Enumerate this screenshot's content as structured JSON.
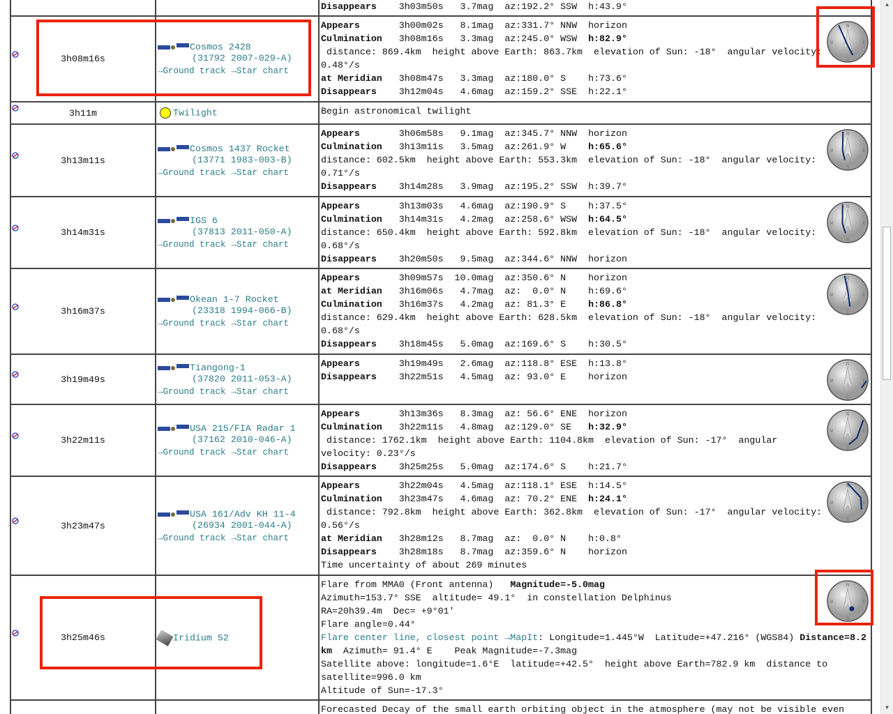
{
  "colors": {
    "link": "#2b7d8a",
    "highlight": "#e8240c",
    "twilight_sun": "#ffff00"
  },
  "links": {
    "ground_track": "→Ground track",
    "star_chart": "→Star chart"
  },
  "rows": [
    {
      "time": "",
      "name": "",
      "designation": "",
      "lines": [
        {
          "type": "event",
          "label": "Disappears",
          "time": "3h03m50s",
          "mag": "3.7mag",
          "az": "az:192.2°",
          "dir": "SSW",
          "h": "h:43.9°"
        }
      ]
    },
    {
      "time": "3h08m16s",
      "name": "Cosmos 2428",
      "designation": "(31792 2007-029-A)",
      "compass": true,
      "lines": [
        {
          "type": "event",
          "label": "Appears",
          "time": "3h00m02s",
          "mag": "8.1mag",
          "az": "az:331.7°",
          "dir": "NNW",
          "h": "horizon"
        },
        {
          "type": "event",
          "label": "Culmination",
          "time": "3h08m16s",
          "mag": "3.3mag",
          "az": "az:245.0°",
          "dir": "WSW",
          "h": "h:82.9°",
          "hbold": true
        },
        {
          "type": "text",
          "text": " distance: 869.4km  height above Earth: 863.7km  elevation of Sun: -18°  angular velocity: 0.48°/s"
        },
        {
          "type": "event",
          "label": "at Meridian",
          "time": "3h08m47s",
          "mag": "3.3mag",
          "az": "az:180.0°",
          "dir": "S",
          "h": "h:73.6°"
        },
        {
          "type": "event",
          "label": "Disappears",
          "time": "3h12m04s",
          "mag": "4.6mag",
          "az": "az:159.2°",
          "dir": "SSE",
          "h": "h:22.1°"
        }
      ]
    },
    {
      "time": "3h11m",
      "name": "Twilight",
      "twilight": true,
      "lines": [
        {
          "type": "text",
          "text": "Begin astronomical twilight"
        }
      ]
    },
    {
      "time": "3h13m11s",
      "name": "Cosmos 1437 Rocket",
      "designation": "(13771 1983-003-B)",
      "compass": true,
      "lines": [
        {
          "type": "event",
          "label": "Appears",
          "time": "3h06m58s",
          "mag": "9.1mag",
          "az": "az:345.7°",
          "dir": "NNW",
          "h": "horizon"
        },
        {
          "type": "event",
          "label": "Culmination",
          "time": "3h13m11s",
          "mag": "3.5mag",
          "az": "az:261.9°",
          "dir": "W",
          "h": "h:65.6°",
          "hbold": true
        },
        {
          "type": "text",
          "text": "distance: 602.5km  height above Earth: 553.3km  elevation of Sun: -18°  angular velocity: 0.71°/s"
        },
        {
          "type": "event",
          "label": "Disappears",
          "time": "3h14m28s",
          "mag": "3.9mag",
          "az": "az:195.2°",
          "dir": "SSW",
          "h": "h:39.7°"
        }
      ]
    },
    {
      "time": "3h14m31s",
      "name": "IGS 6",
      "designation": "(37813 2011-050-A)",
      "compass": true,
      "lines": [
        {
          "type": "event",
          "label": "Appears",
          "time": "3h13m03s",
          "mag": "4.6mag",
          "az": "az:190.9°",
          "dir": "S",
          "h": "h:37.5°"
        },
        {
          "type": "event",
          "label": "Culmination",
          "time": "3h14m31s",
          "mag": "4.2mag",
          "az": "az:258.6°",
          "dir": "WSW",
          "h": "h:64.5°",
          "hbold": true
        },
        {
          "type": "text",
          "text": "distance: 650.4km  height above Earth: 592.8km  elevation of Sun: -18°  angular velocity: 0.68°/s"
        },
        {
          "type": "event",
          "label": "Disappears",
          "time": "3h20m50s",
          "mag": "9.5mag",
          "az": "az:344.6°",
          "dir": "NNW",
          "h": "horizon"
        }
      ]
    },
    {
      "time": "3h16m37s",
      "name": "Okean 1-7 Rocket",
      "designation": "(23318 1994-066-B)",
      "compass": true,
      "lines": [
        {
          "type": "event",
          "label": "Appears",
          "time": "3h09m57s",
          "mag": "10.0mag",
          "az": "az:350.6°",
          "dir": "N",
          "h": "horizon"
        },
        {
          "type": "event",
          "label": "at Meridian",
          "time": "3h16m06s",
          "mag": "4.7mag",
          "az": "az:  0.0°",
          "dir": "N",
          "h": "h:69.6°"
        },
        {
          "type": "event",
          "label": "Culmination",
          "time": "3h16m37s",
          "mag": "4.2mag",
          "az": "az: 81.3°",
          "dir": "E",
          "h": "h:86.8°",
          "hbold": true
        },
        {
          "type": "text",
          "text": "distance: 629.4km  height above Earth: 628.5km  elevation of Sun: -18°  angular velocity: 0.68°/s"
        },
        {
          "type": "event",
          "label": "Disappears",
          "time": "3h18m45s",
          "mag": "5.0mag",
          "az": "az:169.6°",
          "dir": "S",
          "h": "h:30.5°"
        }
      ]
    },
    {
      "time": "3h19m49s",
      "name": "Tiangong-1",
      "designation": "(37820 2011-053-A)",
      "compass": true,
      "lines": [
        {
          "type": "event",
          "label": "Appears",
          "time": "3h19m49s",
          "mag": "2.6mag",
          "az": "az:118.8°",
          "dir": "ESE",
          "h": "h:13.8°"
        },
        {
          "type": "event",
          "label": "Disappears",
          "time": "3h22m51s",
          "mag": "4.5mag",
          "az": "az: 93.0°",
          "dir": "E",
          "h": "horizon"
        }
      ]
    },
    {
      "time": "3h22m11s",
      "name": "USA 215/FIA Radar 1",
      "designation": "(37162 2010-046-A)",
      "compass": true,
      "lines": [
        {
          "type": "event",
          "label": "Appears",
          "time": "3h13m36s",
          "mag": "8.3mag",
          "az": "az: 56.6°",
          "dir": "ENE",
          "h": "horizon"
        },
        {
          "type": "event",
          "label": "Culmination",
          "time": "3h22m11s",
          "mag": "4.8mag",
          "az": "az:129.0°",
          "dir": "SE",
          "h": "h:32.9°",
          "hbold": true
        },
        {
          "type": "text",
          "text": " distance: 1762.1km  height above Earth: 1104.8km  elevation of Sun: -17°  angular velocity: 0.23°/s"
        },
        {
          "type": "event",
          "label": "Disappears",
          "time": "3h25m25s",
          "mag": "5.0mag",
          "az": "az:174.6°",
          "dir": "S",
          "h": "h:21.7°"
        }
      ]
    },
    {
      "time": "3h23m47s",
      "name": "USA 161/Adv KH 11-4",
      "designation": "(26934 2001-044-A)",
      "compass": true,
      "lines": [
        {
          "type": "event",
          "label": "Appears",
          "time": "3h22m04s",
          "mag": "4.5mag",
          "az": "az:118.1°",
          "dir": "ESE",
          "h": "h:14.5°"
        },
        {
          "type": "event",
          "label": "Culmination",
          "time": "3h23m47s",
          "mag": "4.6mag",
          "az": "az: 70.2°",
          "dir": "ENE",
          "h": "h:24.1°",
          "hbold": true
        },
        {
          "type": "text",
          "text": " distance: 792.8km  height above Earth: 362.8km  elevation of Sun: -17°  angular velocity: 0.56°/s"
        },
        {
          "type": "event",
          "label": "at Meridian",
          "time": "3h28m12s",
          "mag": "8.7mag",
          "az": "az:  0.0°",
          "dir": "N",
          "h": "h:0.8°"
        },
        {
          "type": "event",
          "label": "Disappears",
          "time": "3h28m18s",
          "mag": "8.7mag",
          "az": "az:359.6°",
          "dir": "N",
          "h": "horizon"
        },
        {
          "type": "text",
          "text": "Time uncertainty of about 269 minutes"
        }
      ]
    },
    {
      "time": "3h25m46s",
      "name": "Iridium 52",
      "iridium": true,
      "compass": true,
      "flare": true,
      "lines": [
        {
          "type": "rich",
          "parts": [
            {
              "t": "Flare from MMA0 (Front antenna)   "
            },
            {
              "t": "Magnitude=-5.0mag",
              "b": true
            }
          ]
        },
        {
          "type": "text",
          "text": "Azimuth=153.7° SSE  altitude= 49.1°  in constellation Delphinus"
        },
        {
          "type": "text",
          "text": "RA=20h39.4m  Dec= +9°01'"
        },
        {
          "type": "text",
          "text": "Flare angle=0.44°"
        },
        {
          "type": "rich",
          "parts": [
            {
              "t": "Flare center line, closest point →MapIt",
              "c": "teal"
            },
            {
              "t": ": Longitude=1.445°W  Latitude=+47.216° (WGS84) "
            },
            {
              "t": "Distance=8.2 km",
              "b": true
            },
            {
              "t": "  Azimuth= 91.4° E    Peak Magnitude=-7.3mag"
            }
          ]
        },
        {
          "type": "text",
          "text": "Satellite above: longitude=1.6°E  latitude=+42.5°  height above Earth=782.9 km  distance to satellite=996.0 km"
        },
        {
          "type": "text",
          "text": "Altitude of Sun=-17.3°"
        }
      ]
    },
    {
      "time": "",
      "name": "",
      "designation": "",
      "lines": [
        {
          "type": "text",
          "text": "Forecasted Decay of the small earth orbiting object in the atmosphere (may not be visible even"
        }
      ]
    }
  ]
}
